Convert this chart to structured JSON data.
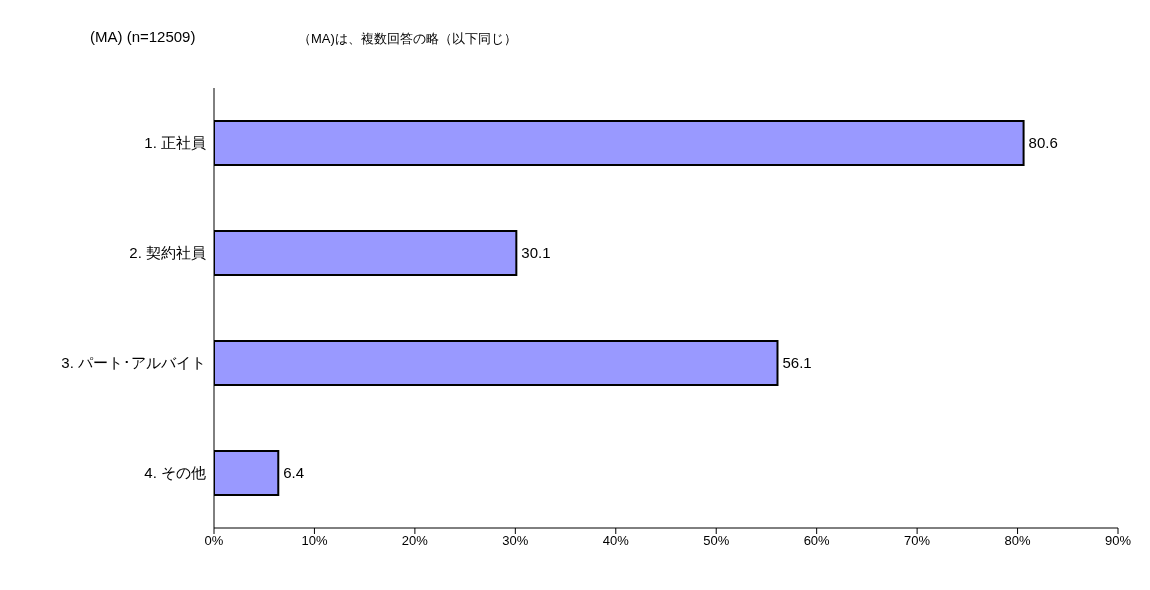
{
  "chart_data": {
    "type": "bar",
    "orientation": "horizontal",
    "title": "(MA) (n=12509)",
    "subtitle": "（MA)は、複数回答の略（以下同じ）",
    "categories": [
      "1. 正社員",
      "2. 契約社員",
      "3. パート･アルバイト",
      "4. その他"
    ],
    "values": [
      80.6,
      30.1,
      56.1,
      6.4
    ],
    "color": "#9999ff",
    "xlim": [
      0,
      90
    ],
    "xticks": [
      {
        "value": 0,
        "label": "0%"
      },
      {
        "value": 10,
        "label": "10%"
      },
      {
        "value": 20,
        "label": "20%"
      },
      {
        "value": 30,
        "label": "30%"
      },
      {
        "value": 40,
        "label": "40%"
      },
      {
        "value": 50,
        "label": "50%"
      },
      {
        "value": 60,
        "label": "60%"
      },
      {
        "value": 70,
        "label": "70%"
      },
      {
        "value": 80,
        "label": "80%"
      },
      {
        "value": 90,
        "label": "90%"
      }
    ],
    "data_labels": true,
    "grid": false,
    "legend": false
  }
}
